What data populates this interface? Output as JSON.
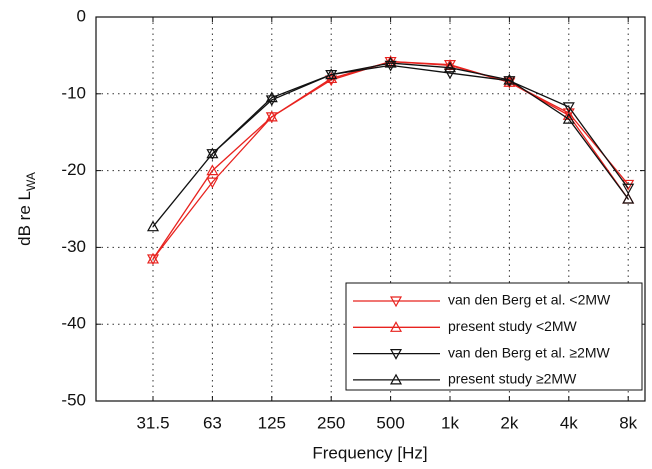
{
  "chart_data": {
    "type": "line",
    "xlabel": "Frequency [Hz]",
    "ylabel": "dB re L",
    "ylabel_subscript": "WA",
    "categories": [
      "31.5",
      "63",
      "125",
      "250",
      "500",
      "1k",
      "2k",
      "4k",
      "8k"
    ],
    "ylim": [
      -50,
      0
    ],
    "yticks": [
      0,
      -10,
      -20,
      -30,
      -40,
      -50
    ],
    "grid": true,
    "legend": "lower right",
    "series": [
      {
        "name": "van den Berg et al. <2MW",
        "color": "#e8231f",
        "marker": "down",
        "values": [
          -31.5,
          -21.5,
          -13,
          -8.2,
          -5.8,
          -6.2,
          -8.5,
          -12.5,
          -21.8
        ]
      },
      {
        "name": "present study <2MW",
        "color": "#e8231f",
        "marker": "up",
        "values": [
          -31.5,
          -20,
          -13,
          -8,
          -5.8,
          -6.3,
          -8.5,
          -12.8,
          -23.7
        ]
      },
      {
        "name": "van den Berg et al. ≥2MW",
        "color": "#111111",
        "marker": "down",
        "values": [
          null,
          -17.8,
          -10.8,
          -7.5,
          -6.3,
          -7.3,
          -8.3,
          -11.7,
          -22.3
        ]
      },
      {
        "name": "present study ≥2MW",
        "color": "#111111",
        "marker": "up",
        "values": [
          -27.3,
          -17.8,
          -10.5,
          -7.5,
          -6.0,
          -6.6,
          -8.2,
          -13.3,
          -23.7
        ]
      }
    ]
  }
}
